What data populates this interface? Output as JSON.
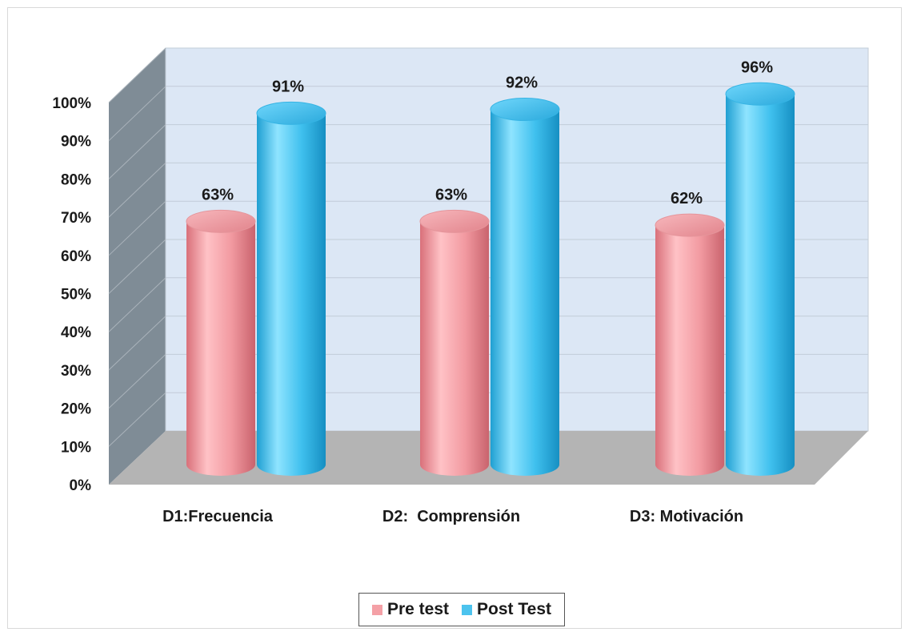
{
  "chart_data": {
    "type": "bar",
    "style": "3d-cylinder",
    "categories": [
      "D1:Frecuencia",
      "D2:  Comprensión",
      "D3: Motivación"
    ],
    "series": [
      {
        "name": "Pre test",
        "values": [
          63,
          63,
          62
        ],
        "labels": [
          "63%",
          "63%",
          "62%"
        ],
        "color": "#f4a0a6"
      },
      {
        "name": "Post Test",
        "values": [
          91,
          92,
          96
        ],
        "labels": [
          "91%",
          "92%",
          "96%"
        ],
        "color": "#4cc3ee"
      }
    ],
    "yticks": [
      "0%",
      "10%",
      "20%",
      "30%",
      "40%",
      "50%",
      "60%",
      "70%",
      "80%",
      "90%",
      "100%"
    ],
    "ylim": [
      0,
      100
    ],
    "grid": true,
    "legend_position": "bottom",
    "colors": {
      "back_wall": "#dce7f5",
      "side_wall": "#7f8c96",
      "floor": "#b4b4b4"
    }
  }
}
